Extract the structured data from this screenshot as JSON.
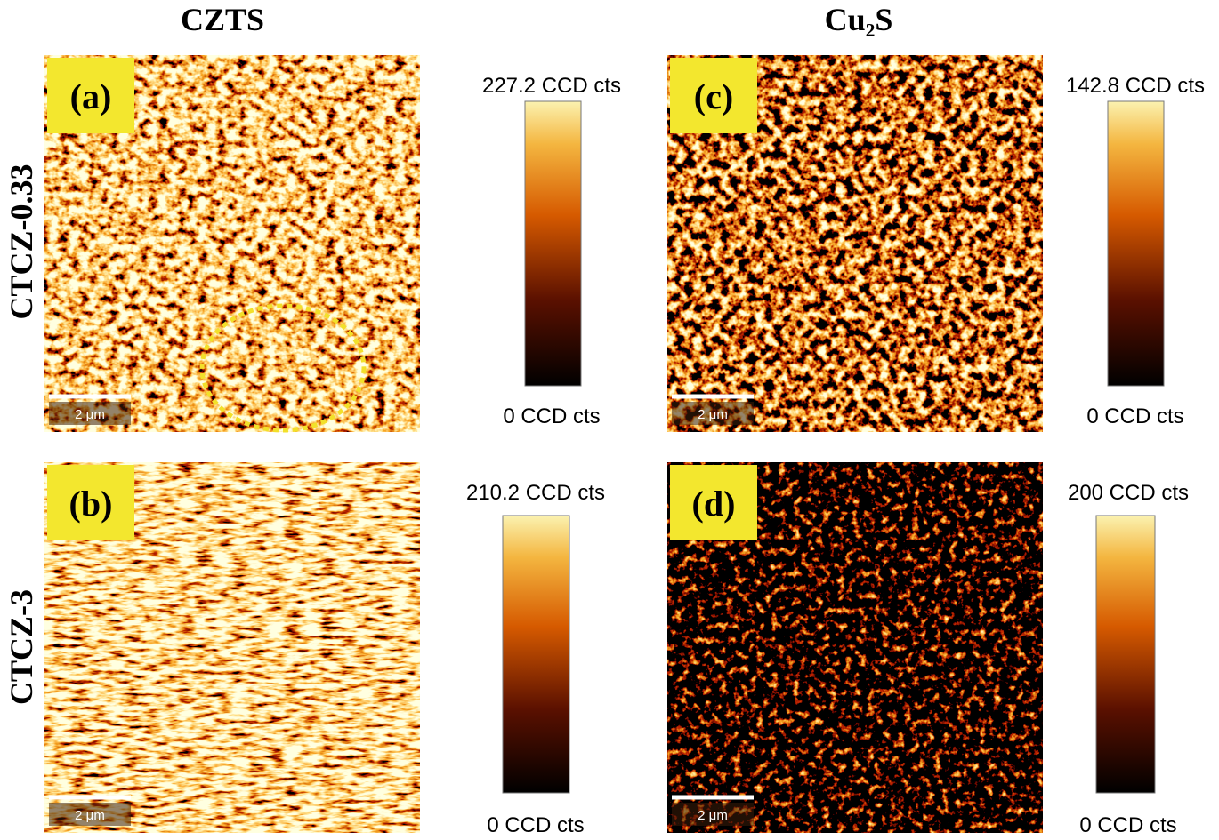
{
  "columns": [
    "CZTS",
    "Cu₂S"
  ],
  "rows": [
    "CTCZ-0.33",
    "CTCZ-3"
  ],
  "panels": [
    {
      "label": "(a)",
      "scale_bar": "2 μm",
      "colorbar": {
        "max": "227.2 CCD cts",
        "min": "0 CCD cts"
      }
    },
    {
      "label": "(c)",
      "scale_bar": "2 μm",
      "colorbar": {
        "max": "142.8 CCD cts",
        "min": "0 CCD cts"
      }
    },
    {
      "label": "(b)",
      "scale_bar": "2 μm",
      "colorbar": {
        "max": "210.2 CCD cts",
        "min": "0 CCD cts"
      }
    },
    {
      "label": "(d)",
      "scale_bar": "2 μm",
      "colorbar": {
        "max": "200 CCD cts",
        "min": "0 CCD cts"
      }
    }
  ]
}
